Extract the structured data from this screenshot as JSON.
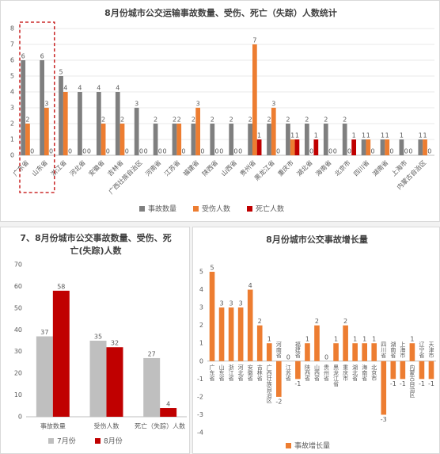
{
  "chart_data": [
    {
      "type": "bar",
      "title": "8月份城市公交运输事故数量、受伤、死亡（失踪）人数统计",
      "categories": [
        "广东省",
        "山东省",
        "浙江省",
        "河北省",
        "安徽省",
        "吉林省",
        "广西壮族自治区",
        "河南省",
        "江苏省",
        "福建省",
        "陕西省",
        "山西省",
        "贵州省",
        "黑龙江省",
        "重庆市",
        "湖北省",
        "海南省",
        "北京市",
        "四川省",
        "湖南省",
        "上海市",
        "内蒙古自治区"
      ],
      "series": [
        {
          "name": "事故数量",
          "color": "#7f7f7f",
          "values": [
            6,
            6,
            5,
            4,
            4,
            4,
            3,
            2,
            2,
            2,
            2,
            2,
            2,
            2,
            2,
            2,
            2,
            2,
            1,
            1,
            1,
            1
          ]
        },
        {
          "name": "受伤人数",
          "color": "#ed7d31",
          "values": [
            2,
            3,
            4,
            0,
            2,
            2,
            0,
            0,
            2,
            3,
            0,
            0,
            7,
            3,
            1,
            0,
            0,
            0,
            1,
            1,
            0,
            1
          ]
        },
        {
          "name": "死亡人数",
          "color": "#c00000",
          "values": [
            0,
            0,
            0,
            0,
            0,
            0,
            0,
            0,
            0,
            0,
            0,
            0,
            1,
            0,
            1,
            1,
            0,
            1,
            0,
            0,
            0,
            0
          ]
        }
      ],
      "ylim": [
        0,
        8
      ],
      "yticks": [
        0,
        1,
        2,
        3,
        4,
        5,
        6,
        7,
        8
      ],
      "grid": true,
      "legend": "bottom"
    },
    {
      "type": "bar",
      "title": "7、8月份城市公交事故数量、受伤、死亡(失踪)人数",
      "categories": [
        "事故数量",
        "受伤人数",
        "死亡（失踪）人数"
      ],
      "series": [
        {
          "name": "7月份",
          "color": "#bfbfbf",
          "values": [
            37,
            35,
            27
          ]
        },
        {
          "name": "8月份",
          "color": "#c00000",
          "values": [
            58,
            32,
            4
          ]
        }
      ],
      "ylim": [
        0,
        70
      ],
      "yticks": [
        0,
        10,
        20,
        30,
        40,
        50,
        60,
        70
      ],
      "grid": false,
      "legend": "bottom"
    },
    {
      "type": "bar",
      "title": "8月份城市公交事故增长量",
      "categories": [
        "广东省",
        "山东省",
        "浙江省",
        "河北省",
        "安徽省",
        "吉林省",
        "广西壮族自治区",
        "河南省",
        "江苏省",
        "福建省",
        "陕西省",
        "山西省",
        "贵州省",
        "黑龙江省",
        "重庆市",
        "湖北省",
        "海南省",
        "北京市",
        "四川省",
        "湖南省",
        "上海市",
        "内蒙古自治区",
        "辽宁省",
        "天津市"
      ],
      "series": [
        {
          "name": "事故增长量",
          "color": "#ed7d31",
          "values": [
            5,
            3,
            3,
            3,
            4,
            2,
            1,
            -2,
            0,
            -1,
            1,
            2,
            0,
            1,
            2,
            1,
            1,
            1,
            -3,
            -1,
            -1,
            1,
            -1,
            -1
          ]
        }
      ],
      "ylim": [
        -4,
        5
      ],
      "yticks": [
        -4,
        -3,
        -2,
        -1,
        0,
        1,
        2,
        3,
        4,
        5
      ],
      "grid": false,
      "legend": "bottom"
    }
  ]
}
